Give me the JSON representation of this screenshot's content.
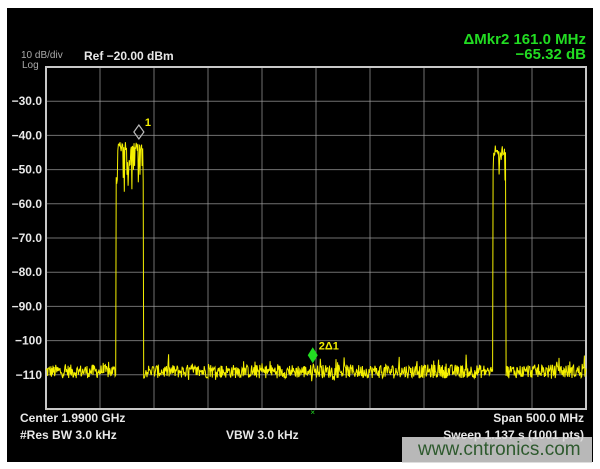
{
  "header": {
    "scale": "10 dB/div",
    "scale_type": "Log",
    "ref_level": "Ref −20.00 dBm",
    "marker_readout_freq": "ΔMkr2 161.0 MHz",
    "marker_readout_amp": "−65.32 dB"
  },
  "footer": {
    "center": "Center 1.9900 GHz",
    "span": "Span 500.0 MHz",
    "res_bw": "#Res BW 3.0 kHz",
    "vbw": "VBW 3.0 kHz",
    "sweep": "Sweep  1.137 s (1001 pts)"
  },
  "watermark": "www.cntronics.com",
  "colors": {
    "trace": "#f5f000",
    "readout": "#22dd22",
    "grid": "#a0a0a0",
    "background": "#000000",
    "marker1": "#bbbbbb",
    "marker2": "#22dd22"
  },
  "chart_data": {
    "type": "line",
    "x_unit": "GHz",
    "y_unit": "dBm",
    "xlim": [
      1.74,
      2.24
    ],
    "ylim": [
      -120,
      -20
    ],
    "grid": true,
    "y_ticks": [
      {
        "value": -30,
        "label": "-30.0"
      },
      {
        "value": -40,
        "label": "-40.0"
      },
      {
        "value": -50,
        "label": "-50.0"
      },
      {
        "value": -60,
        "label": "-60.0"
      },
      {
        "value": -70,
        "label": "-70.0"
      },
      {
        "value": -80,
        "label": "-80.0"
      },
      {
        "value": -90,
        "label": "-90.0"
      },
      {
        "value": -100,
        "label": "-100"
      },
      {
        "value": -110,
        "label": "-110"
      }
    ],
    "noise_floor": -109,
    "points": 1001,
    "signals": [
      {
        "start": 1.805,
        "stop": 1.83,
        "level": -44
      },
      {
        "start": 2.154,
        "stop": 2.166,
        "level": -45
      }
    ],
    "markers": [
      {
        "label": "1",
        "freq": 1.826,
        "amp": -39
      },
      {
        "label": "2Δ1",
        "freq": 1.987,
        "amp": -104.3
      }
    ]
  }
}
